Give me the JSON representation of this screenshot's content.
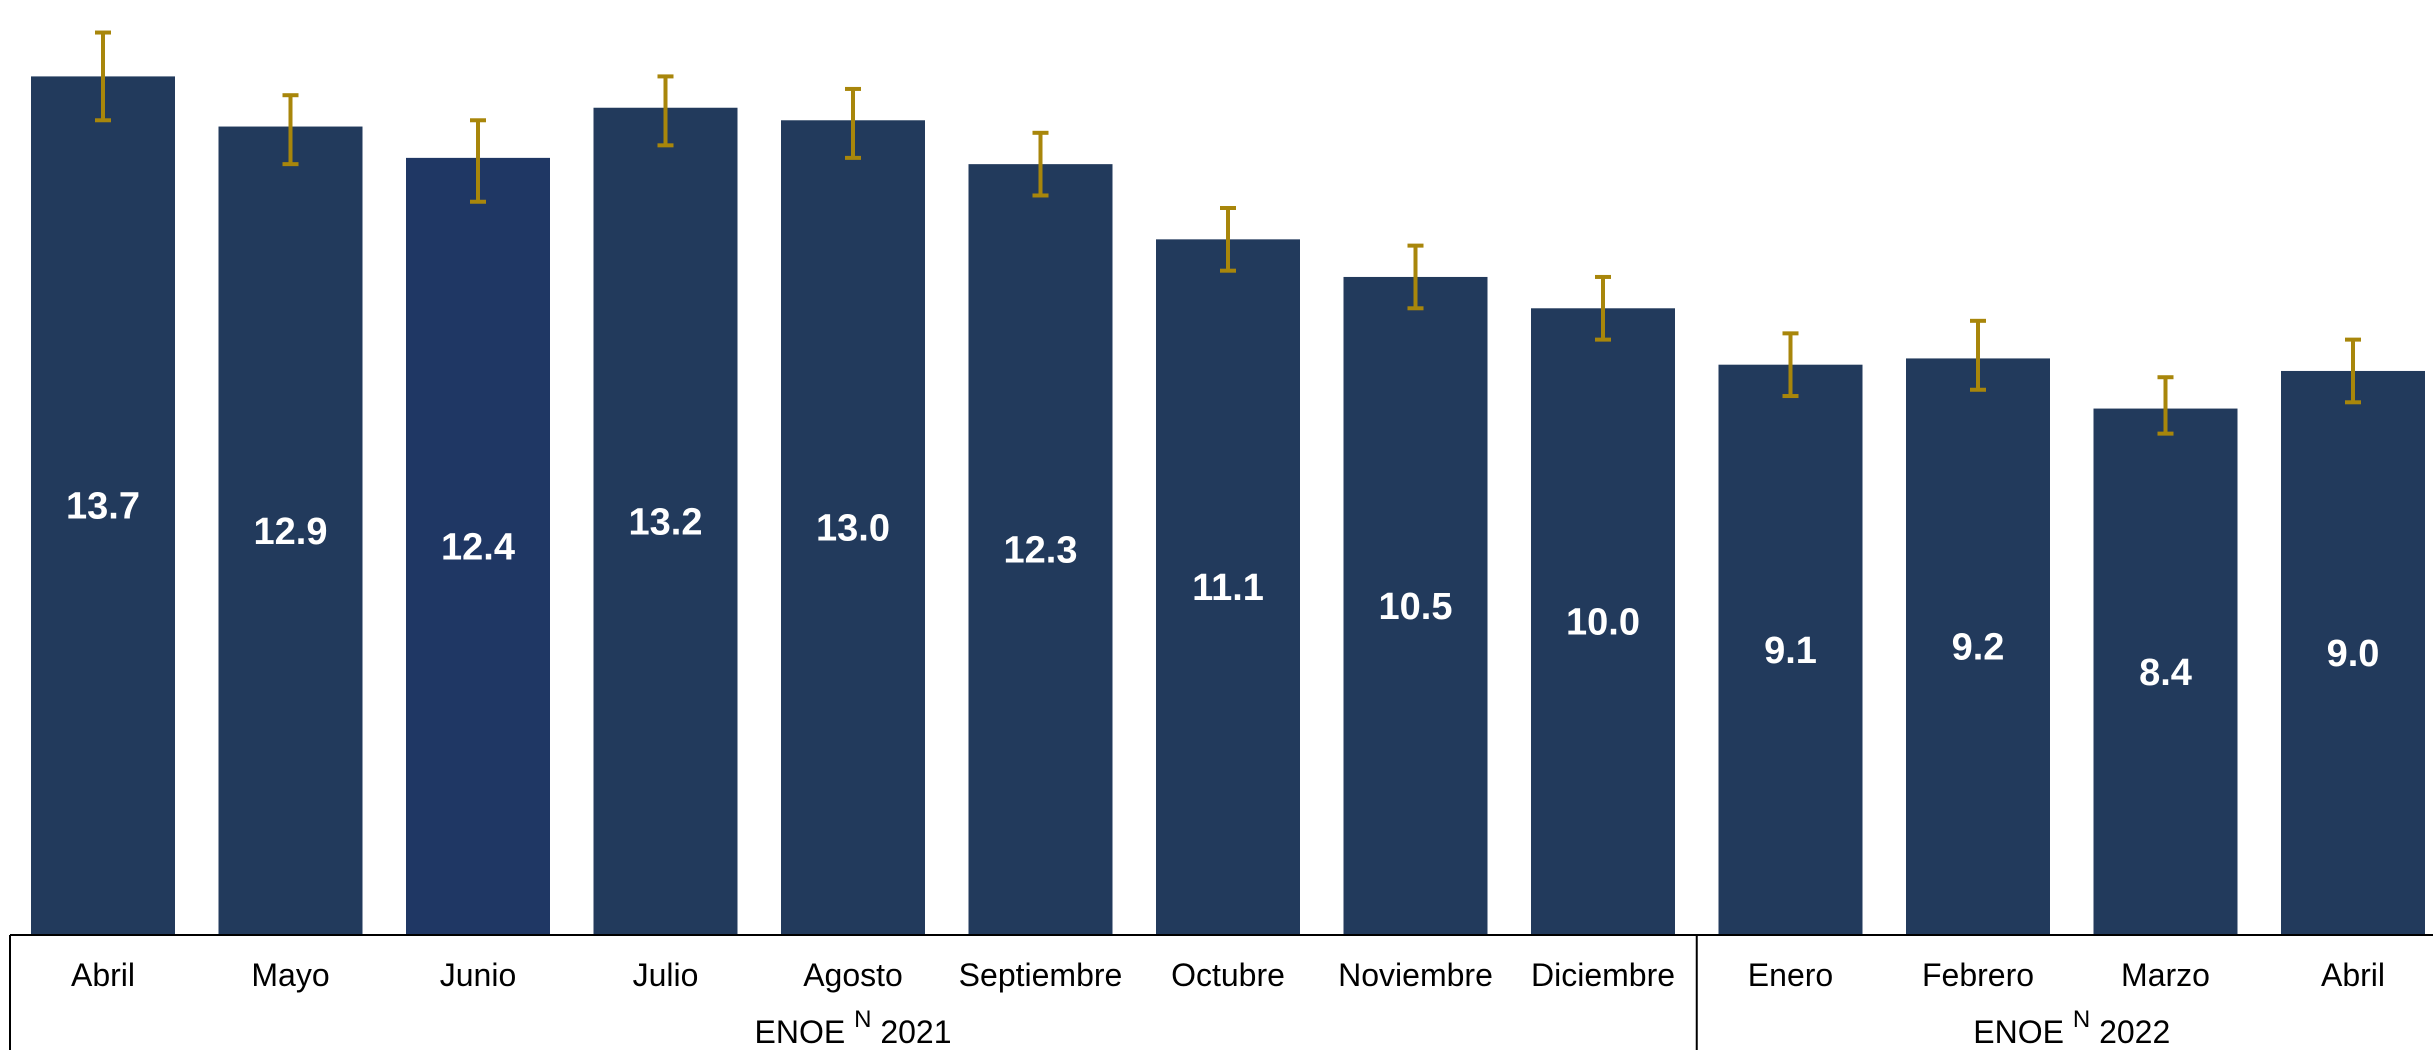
{
  "chart_data": {
    "type": "bar",
    "categories": [
      "Abril",
      "Mayo",
      "Junio",
      "Julio",
      "Agosto",
      "Septiembre",
      "Octubre",
      "Noviembre",
      "Diciembre",
      "Enero",
      "Febrero",
      "Marzo",
      "Abril"
    ],
    "series": [
      {
        "values": [
          13.7,
          12.9,
          12.4,
          13.2,
          13.0,
          12.3,
          11.1,
          10.5,
          10.0,
          9.1,
          9.2,
          8.4,
          9.0
        ],
        "value_labels": [
          "13.7",
          "12.9",
          "12.4",
          "13.2",
          "13.0",
          "12.3",
          "11.1",
          "10.5",
          "10.0",
          "9.1",
          "9.2",
          "8.4",
          "9.0"
        ],
        "error_low": [
          13.0,
          12.3,
          11.7,
          12.6,
          12.4,
          11.8,
          10.6,
          10.0,
          9.5,
          8.6,
          8.7,
          8.0,
          8.5
        ],
        "error_high": [
          14.4,
          13.4,
          13.0,
          13.7,
          13.5,
          12.8,
          11.6,
          11.0,
          10.5,
          9.6,
          9.8,
          8.9,
          9.5
        ]
      }
    ],
    "groups": [
      {
        "label": "ENOE",
        "sup": "N",
        "year": "2021",
        "start": 0,
        "end": 8
      },
      {
        "label": "ENOE",
        "sup": "N",
        "year": "2022",
        "start": 9,
        "end": 12
      }
    ],
    "ylim": [
      0,
      14.6
    ],
    "grid": false,
    "colors": {
      "bar": "#223a5c",
      "bar_highlight": "#1f3764",
      "error": "#a8860b",
      "value_label": "#ffffff"
    },
    "highlight_index": 2
  }
}
